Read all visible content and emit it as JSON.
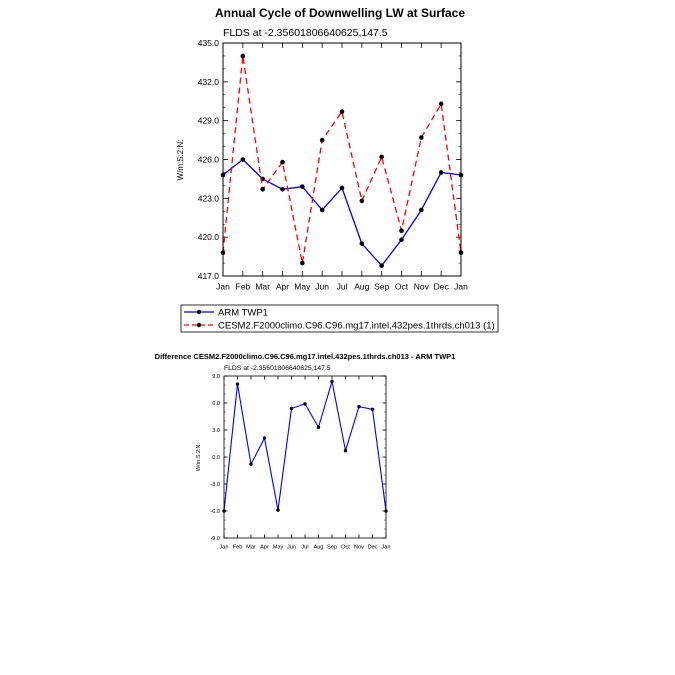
{
  "months": [
    "Jan",
    "Feb",
    "Mar",
    "Apr",
    "May",
    "Jun",
    "Jul",
    "Aug",
    "Sep",
    "Oct",
    "Nov",
    "Dec",
    "Jan"
  ],
  "chart_data": [
    {
      "type": "line",
      "title": "Annual Cycle of Downwelling LW at Surface",
      "subtitle": "FLDS at -2.35601806640625,147.5",
      "ylabel": "W/m:S:2:N:",
      "ylim": [
        417.0,
        435.0
      ],
      "yticks": [
        "417.0",
        "420.0",
        "423.0",
        "426.0",
        "429.0",
        "432.0",
        "435.0"
      ],
      "ytick_values": [
        417,
        420,
        423,
        426,
        429,
        432,
        435
      ],
      "series": [
        {
          "name": "ARM TWP1",
          "color": "#0000ff",
          "dash": "solid",
          "values": [
            424.8,
            426.0,
            424.5,
            423.7,
            423.9,
            422.1,
            423.8,
            419.5,
            417.8,
            419.8,
            422.1,
            425.0,
            424.8
          ]
        },
        {
          "name": "CESM2.F2000climo.C96.C96.mg17.intel.432pes.1thrds.ch013 (1)",
          "color": "#ff0000",
          "dash": "dashed",
          "values": [
            418.8,
            434.0,
            423.7,
            425.8,
            418.0,
            427.5,
            429.7,
            422.8,
            426.2,
            420.5,
            427.7,
            430.3,
            418.8
          ]
        }
      ],
      "legend": "below"
    },
    {
      "type": "line",
      "title": "Difference CESM2.F2000climo.C96.C96.mg17.intel.432pes.1thrds.ch013 - ARM TWP1",
      "subtitle": "FLDS at -2.35601806640625,147.5",
      "ylabel": "W/m:S:2:N:",
      "ylim": [
        -9.0,
        9.0
      ],
      "yticks": [
        "-9.0",
        "-6.0",
        "-3.0",
        "0.0",
        "3.0",
        "6.0",
        "9.0"
      ],
      "ytick_values": [
        -9,
        -6,
        -3,
        0,
        3,
        6,
        9
      ],
      "series": [
        {
          "name": "Difference",
          "color": "#0000ff",
          "dash": "solid",
          "values": [
            -6.0,
            8.1,
            -0.8,
            2.1,
            -5.9,
            5.4,
            5.9,
            3.3,
            8.4,
            0.7,
            5.6,
            5.3,
            -6.0
          ]
        }
      ]
    }
  ]
}
